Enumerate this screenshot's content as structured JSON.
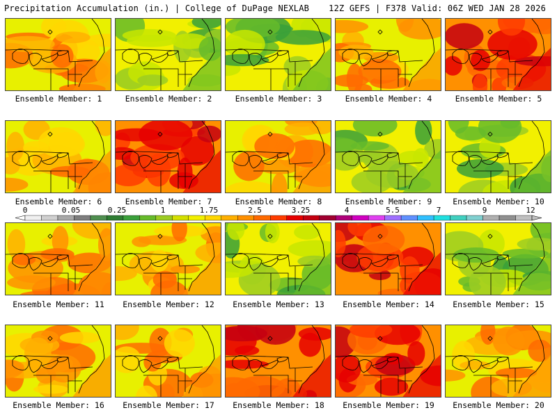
{
  "header": {
    "title_left": "Precipitation Accumulation (in.) | College of DuPage NEXLAB",
    "title_right": "12Z GEFS | F378 Valid: 06Z WED JAN 28 2026"
  },
  "members": [
    {
      "label": "Ensemble Member: 1",
      "tone": "moderate"
    },
    {
      "label": "Ensemble Member: 2",
      "tone": "light"
    },
    {
      "label": "Ensemble Member: 3",
      "tone": "light"
    },
    {
      "label": "Ensemble Member: 4",
      "tone": "moderate"
    },
    {
      "label": "Ensemble Member: 5",
      "tone": "heavy"
    },
    {
      "label": "Ensemble Member: 6",
      "tone": "moderate"
    },
    {
      "label": "Ensemble Member: 7",
      "tone": "heavy"
    },
    {
      "label": "Ensemble Member: 8",
      "tone": "moderate"
    },
    {
      "label": "Ensemble Member: 9",
      "tone": "light"
    },
    {
      "label": "Ensemble Member: 10",
      "tone": "light"
    },
    {
      "label": "Ensemble Member: 11",
      "tone": "moderate"
    },
    {
      "label": "Ensemble Member: 12",
      "tone": "moderate"
    },
    {
      "label": "Ensemble Member: 13",
      "tone": "light"
    },
    {
      "label": "Ensemble Member: 14",
      "tone": "heavy"
    },
    {
      "label": "Ensemble Member: 15",
      "tone": "light"
    },
    {
      "label": "Ensemble Member: 16",
      "tone": "moderate"
    },
    {
      "label": "Ensemble Member: 17",
      "tone": "moderate"
    },
    {
      "label": "Ensemble Member: 18",
      "tone": "heavy"
    },
    {
      "label": "Ensemble Member: 19",
      "tone": "heavy"
    },
    {
      "label": "Ensemble Member: 20",
      "tone": "moderate"
    }
  ],
  "colorbar": {
    "labels": [
      "0",
      "0.05",
      "0.25",
      "1",
      "1.75",
      "2.5",
      "3.25",
      "4",
      "5.5",
      "7",
      "9",
      "12"
    ],
    "colors": [
      "#f0f0f0",
      "#d0d0d0",
      "#a8a8a8",
      "#7e7e7e",
      "#4f8f4f",
      "#2e7d32",
      "#3aa03a",
      "#66bb2a",
      "#9ccc22",
      "#d4e000",
      "#f2f000",
      "#ffd700",
      "#ffb000",
      "#ff9000",
      "#ff6a00",
      "#ff3c00",
      "#e60000",
      "#c40010",
      "#a00030",
      "#b0007a",
      "#d000c0",
      "#e040f0",
      "#a070ff",
      "#6090ff",
      "#30c0ff",
      "#20e0e0",
      "#40d0c0",
      "#80d0d0",
      "#b0b0b0",
      "#909090",
      "#c0c0c0"
    ]
  }
}
